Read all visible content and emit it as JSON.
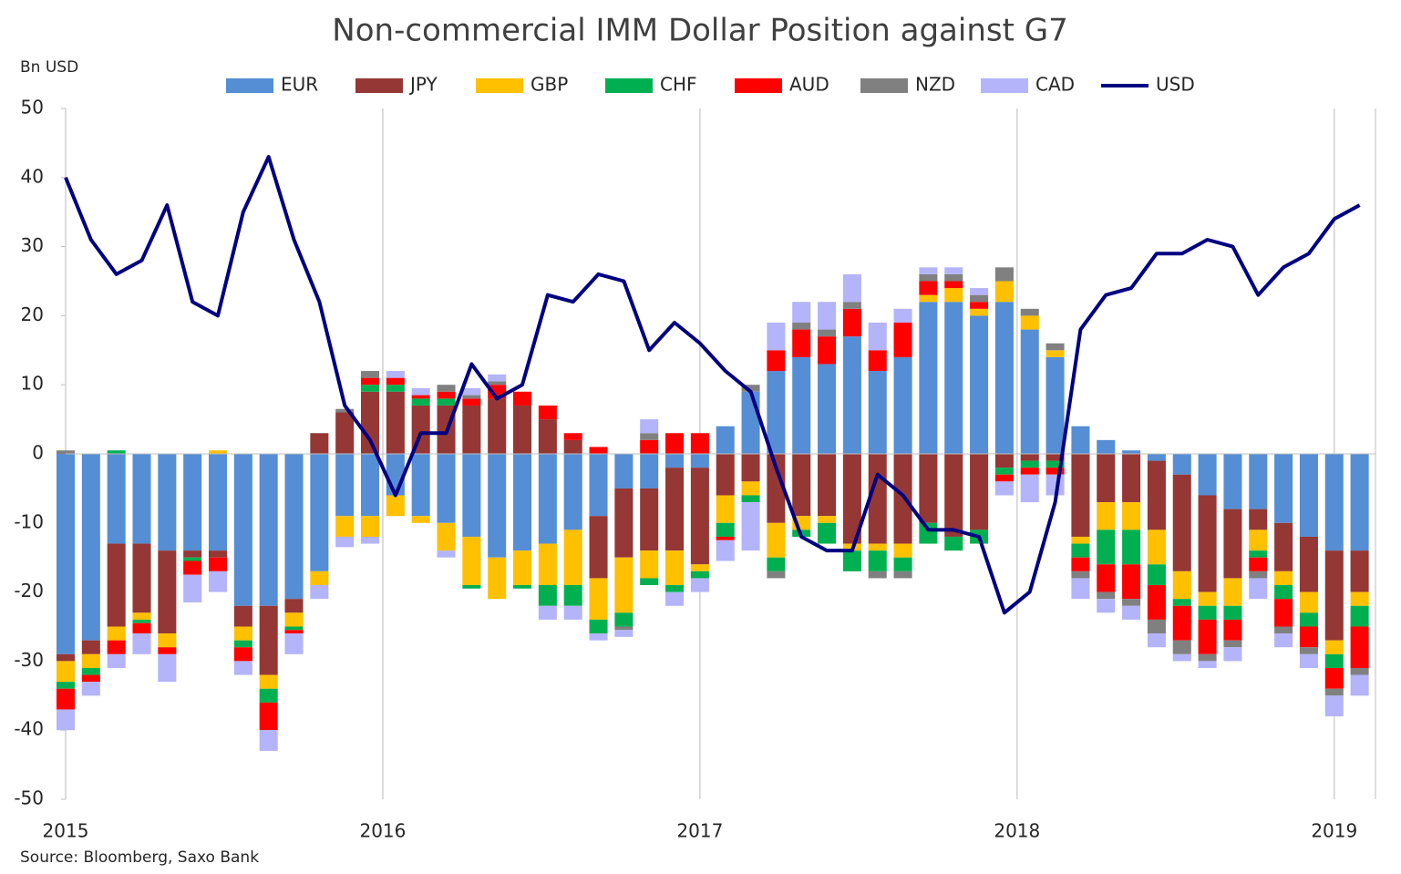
{
  "chart_data": {
    "type": "bar",
    "title": "Non-commercial IMM Dollar Position against G7",
    "y_label": "Bn USD",
    "source": "Source: Bloomberg,  Saxo Bank",
    "x": [
      2015.0,
      2015.08,
      2015.16,
      2015.24,
      2015.32,
      2015.4,
      2015.48,
      2015.56,
      2015.64,
      2015.72,
      2015.8,
      2015.88,
      2015.96,
      2016.04,
      2016.12,
      2016.2,
      2016.28,
      2016.36,
      2016.44,
      2016.52,
      2016.6,
      2016.68,
      2016.76,
      2016.84,
      2016.92,
      2017.0,
      2017.08,
      2017.16,
      2017.24,
      2017.32,
      2017.4,
      2017.48,
      2017.56,
      2017.64,
      2017.72,
      2017.8,
      2017.88,
      2017.96,
      2018.04,
      2018.12,
      2018.2,
      2018.28,
      2018.36,
      2018.44,
      2018.52,
      2018.6,
      2018.68,
      2018.76,
      2018.84,
      2018.92,
      2019.0,
      2019.08
    ],
    "xlim": [
      2015,
      2019.13
    ],
    "xticks": [
      2015,
      2016,
      2017,
      2018,
      2019
    ],
    "ylim": [
      -50,
      50
    ],
    "yticks": [
      -50,
      -40,
      -30,
      -20,
      -10,
      0,
      10,
      20,
      30,
      40,
      50
    ],
    "grid": true,
    "legend": "top",
    "series": [
      {
        "name": "EUR",
        "color": "#558ed5",
        "values": [
          -29,
          -27,
          -13,
          -13,
          -14,
          -14,
          -14,
          -22,
          -22,
          -21,
          -17,
          -9,
          -9,
          -6,
          -9,
          -10,
          -12,
          -15,
          -14,
          -13,
          -11,
          -9,
          -5,
          -5,
          -2,
          -2,
          4,
          9,
          12,
          14,
          13,
          17,
          12,
          14,
          22,
          22,
          20,
          22,
          18,
          14,
          4,
          2,
          0.5,
          -1,
          -3,
          -6,
          -8,
          -8,
          -10,
          -12,
          -14,
          -14
        ]
      },
      {
        "name": "JPY",
        "color": "#953735",
        "values": [
          -1,
          -2,
          -12,
          -10,
          -12,
          -1,
          -1,
          -3,
          -10,
          -2,
          3,
          6,
          9,
          9,
          7,
          7,
          7,
          8,
          7,
          5,
          2,
          -9,
          -10,
          -9,
          -12,
          -14,
          -6,
          -4,
          -10,
          -9,
          -9,
          -13,
          -13,
          -13,
          -10,
          -12,
          -11,
          -2,
          -1,
          -1,
          -12,
          -7,
          -7,
          -10,
          -14,
          -14,
          -10,
          -3,
          -7,
          -8,
          -13,
          -6
        ]
      },
      {
        "name": "GBP",
        "color": "#ffc000",
        "values": [
          -3,
          -2,
          -2,
          -1,
          -2,
          0,
          0.5,
          -2,
          -2,
          -2,
          -2,
          -3,
          -3,
          -3,
          -1,
          -4,
          -7,
          -6,
          -5,
          -6,
          -8,
          -6,
          -8,
          -4,
          -5,
          -1,
          -4,
          -2,
          -5,
          -2,
          -1,
          -1,
          -1,
          -2,
          1,
          2,
          1,
          3,
          2,
          1,
          -1,
          -4,
          -4,
          -5,
          -4,
          -2,
          -4,
          -3,
          -2,
          -3,
          -2,
          -2
        ]
      },
      {
        "name": "CHF",
        "color": "#00b050",
        "values": [
          -1,
          -1,
          0.5,
          -0.5,
          0,
          -0.5,
          0,
          -1,
          -2,
          -0.5,
          0,
          0,
          1,
          1,
          1,
          1,
          -0.5,
          0,
          -0.5,
          -3,
          -3,
          -2,
          -2,
          -1,
          -1,
          -1,
          -2,
          -1,
          -2,
          -1,
          -3,
          -3,
          -3,
          -2,
          -3,
          -2,
          -2,
          -1,
          -1,
          -1,
          -2,
          -5,
          -5,
          -3,
          -1,
          -2,
          -2,
          -1,
          -2,
          -2,
          -2,
          -3
        ]
      },
      {
        "name": "AUD",
        "color": "#ff0000",
        "values": [
          -3,
          -1,
          -2,
          -1.5,
          -1,
          -2,
          -2,
          -2,
          -4,
          -0.5,
          0,
          0,
          1,
          1,
          0.5,
          1,
          1,
          2,
          2,
          2,
          1,
          1,
          0,
          2,
          3,
          3,
          -0.5,
          0,
          3,
          4,
          4,
          4,
          3,
          5,
          2,
          1,
          1,
          -1,
          -1,
          -1,
          -2,
          -4,
          -5,
          -5,
          -5,
          -5,
          -3,
          -2,
          -4,
          -3,
          -3,
          -6
        ]
      },
      {
        "name": "NZD",
        "color": "#808080",
        "values": [
          0.5,
          0,
          0,
          0,
          0,
          0,
          0,
          0,
          0,
          0,
          0,
          0.5,
          1,
          0,
          0,
          1,
          0.5,
          0.5,
          0,
          0,
          0,
          0,
          -0.5,
          1,
          0,
          0,
          0,
          1,
          -1,
          1,
          1,
          1,
          -1,
          -1,
          1,
          1,
          1,
          2,
          1,
          1,
          -1,
          -1,
          -1,
          -2,
          -2,
          -1,
          -1,
          -1,
          -1,
          -1,
          -1,
          -1
        ]
      },
      {
        "name": "CAD",
        "color": "#b4b4fa",
        "values": [
          -3,
          -2,
          -2,
          -3,
          -4,
          -4,
          -3,
          -2,
          -3,
          -3,
          -2,
          -1.5,
          -1,
          1,
          1,
          -1,
          1,
          1,
          0,
          -2,
          -2,
          -1,
          -1,
          2,
          -2,
          -2,
          -3,
          -7,
          4,
          3,
          4,
          4,
          4,
          2,
          1,
          1,
          1,
          -2,
          -4,
          -3,
          -3,
          -2,
          -2,
          -2,
          -1,
          -1,
          -2,
          -3,
          -2,
          -2,
          -3,
          -3
        ]
      },
      {
        "name": "USD",
        "color": "#000080",
        "type": "line",
        "values": [
          40,
          31,
          26,
          28,
          36,
          22,
          20,
          35,
          43,
          31,
          22,
          7,
          2,
          -6,
          3,
          3,
          13,
          8,
          10,
          23,
          22,
          26,
          25,
          15,
          19,
          16,
          12,
          9,
          -2,
          -12,
          -14,
          -14,
          -3,
          -6,
          -11,
          -11,
          -12,
          -23,
          -20,
          -7,
          18,
          23,
          24,
          29,
          29,
          31,
          30,
          23,
          27,
          29,
          34,
          36
        ]
      }
    ]
  }
}
